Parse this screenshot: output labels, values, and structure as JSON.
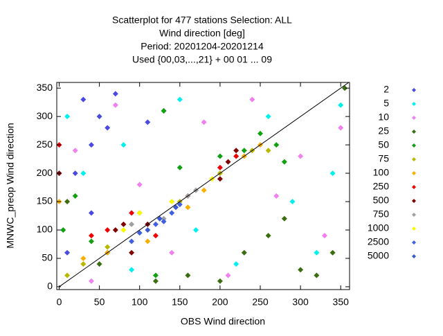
{
  "chart_data": {
    "type": "scatter",
    "title_lines": [
      "Scatterplot for  477 stations Selection: ALL",
      "Wind direction [deg]",
      "Period: 20201204-20201214",
      "Used {00,03,...,21} + 00 01 ... 09"
    ],
    "xlabel": "OBS Wind direction",
    "ylabel": "MNWC_preop Wind direction",
    "xlim": [
      -3,
      361
    ],
    "ylim": [
      -5,
      360
    ],
    "xticks": [
      0,
      50,
      100,
      150,
      200,
      250,
      300,
      350
    ],
    "yticks": [
      0,
      50,
      100,
      150,
      200,
      250,
      300,
      350
    ],
    "series": [
      {
        "name": "2",
        "color": "#4a4ae0",
        "x": [
          30,
          40,
          60,
          20,
          50,
          70,
          110,
          130,
          40,
          10
        ],
        "y": [
          330,
          250,
          280,
          200,
          300,
          340,
          290,
          310,
          130,
          60
        ]
      },
      {
        "name": "5",
        "color": "#00f0f0",
        "x": [
          10,
          30,
          80,
          90,
          150,
          170,
          220,
          260,
          290,
          320,
          340,
          350
        ],
        "y": [
          300,
          200,
          250,
          30,
          330,
          100,
          40,
          300,
          150,
          60,
          200,
          320
        ]
      },
      {
        "name": "10",
        "color": "#f080f0",
        "x": [
          20,
          70,
          100,
          140,
          180,
          210,
          240,
          270,
          300,
          330,
          350,
          40
        ],
        "y": [
          240,
          320,
          180,
          60,
          290,
          20,
          330,
          160,
          230,
          90,
          280,
          10
        ]
      },
      {
        "name": "25",
        "color": "#3a6e10",
        "x": [
          10,
          50,
          120,
          160,
          230,
          260,
          280,
          300,
          320,
          340,
          355,
          200
        ],
        "y": [
          150,
          40,
          10,
          20,
          60,
          90,
          120,
          30,
          20,
          60,
          350,
          10
        ]
      },
      {
        "name": "50",
        "color": "#10a010",
        "x": [
          5,
          20,
          40,
          60,
          130,
          150,
          250,
          270,
          280,
          120,
          200,
          230
        ],
        "y": [
          100,
          160,
          80,
          60,
          310,
          210,
          270,
          250,
          220,
          20,
          230,
          240
        ]
      },
      {
        "name": "75",
        "color": "#b8b800",
        "x": [
          10,
          30,
          60,
          100,
          150,
          200,
          240,
          260
        ],
        "y": [
          20,
          40,
          70,
          130,
          150,
          200,
          240,
          240
        ]
      },
      {
        "name": "100",
        "color": "#f8b000",
        "x": [
          0,
          30,
          60,
          110,
          160,
          180,
          230,
          250
        ],
        "y": [
          150,
          50,
          60,
          80,
          140,
          170,
          230,
          250
        ]
      },
      {
        "name": "250",
        "color": "#f00000",
        "x": [
          0,
          40,
          60,
          90,
          120,
          160,
          200,
          220
        ],
        "y": [
          250,
          90,
          100,
          130,
          90,
          160,
          210,
          230
        ]
      },
      {
        "name": "500",
        "color": "#800000",
        "x": [
          0,
          70,
          80,
          90,
          110,
          200,
          210,
          220
        ],
        "y": [
          200,
          100,
          110,
          60,
          110,
          190,
          220,
          240
        ]
      },
      {
        "name": "750",
        "color": "#a0a0a0",
        "x": [
          90,
          130,
          160,
          170
        ],
        "y": [
          110,
          120,
          160,
          170
        ]
      },
      {
        "name": "1000",
        "color": "#f8f800",
        "x": [
          80,
          100,
          140,
          190
        ],
        "y": [
          100,
          130,
          150,
          190
        ]
      },
      {
        "name": "2500",
        "color": "#4060e0",
        "x": [
          90,
          100,
          120,
          140,
          150,
          130
        ],
        "y": [
          80,
          95,
          110,
          130,
          145,
          115
        ]
      },
      {
        "name": "5000",
        "color": "#3a5ad0",
        "x": [
          110,
          125,
          145
        ],
        "y": [
          100,
          120,
          140
        ]
      }
    ]
  }
}
